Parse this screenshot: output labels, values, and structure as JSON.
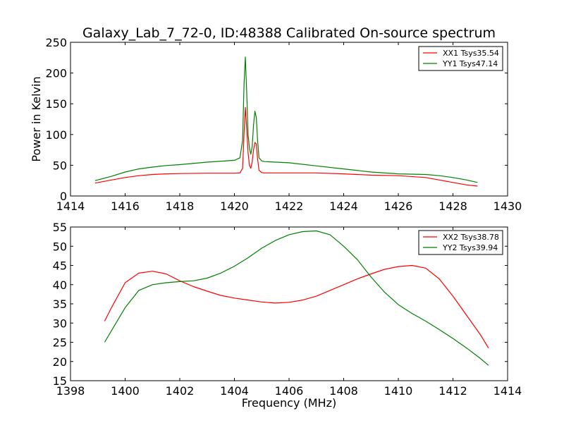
{
  "figure": {
    "title": "Galaxy_Lab_7_72-0, ID:48388 Calibrated On-source spectrum"
  },
  "chart_data": [
    {
      "type": "line",
      "title": "Galaxy_Lab_7_72-0, ID:48388 Calibrated On-source spectrum",
      "xlabel": "",
      "ylabel": "Power in Kelvin",
      "xlim": [
        1414,
        1430
      ],
      "ylim": [
        0,
        250
      ],
      "xticks": [
        1414,
        1416,
        1418,
        1420,
        1422,
        1424,
        1426,
        1428,
        1430
      ],
      "yticks": [
        0,
        50,
        100,
        150,
        200,
        250
      ],
      "grid": false,
      "legend": "top-right",
      "series": [
        {
          "name": "XX1 Tsys35.54",
          "color": "#ff0000",
          "x": [
            1414.9,
            1415.5,
            1416.0,
            1416.5,
            1417.0,
            1417.5,
            1418.0,
            1419.0,
            1420.0,
            1420.2,
            1420.3,
            1420.35,
            1420.4,
            1420.45,
            1420.5,
            1420.55,
            1420.6,
            1420.65,
            1420.7,
            1420.75,
            1420.8,
            1420.85,
            1420.9,
            1421.0,
            1421.1,
            1422.0,
            1423.0,
            1424.0,
            1425.0,
            1426.0,
            1427.0,
            1427.5,
            1428.0,
            1428.5,
            1428.9
          ],
          "values": [
            21,
            26,
            30,
            33,
            35,
            36,
            36.5,
            37,
            37,
            37.5,
            45,
            100,
            144,
            110,
            70,
            50,
            45,
            55,
            75,
            87,
            85,
            60,
            42,
            38,
            37.5,
            37.5,
            37.5,
            36,
            34,
            33,
            30,
            26,
            22,
            18,
            16
          ]
        },
        {
          "name": "YY1 Tsys47.14",
          "color": "#008000",
          "x": [
            1414.9,
            1415.5,
            1416.0,
            1416.5,
            1417.0,
            1417.5,
            1418.0,
            1419.0,
            1420.0,
            1420.2,
            1420.3,
            1420.35,
            1420.4,
            1420.45,
            1420.5,
            1420.55,
            1420.6,
            1420.65,
            1420.7,
            1420.75,
            1420.8,
            1420.85,
            1420.9,
            1421.0,
            1421.1,
            1422.0,
            1423.0,
            1424.0,
            1425.0,
            1426.0,
            1427.0,
            1427.5,
            1428.0,
            1428.5,
            1428.9
          ],
          "values": [
            25,
            32,
            39,
            44,
            47,
            49.5,
            51,
            55,
            58,
            62,
            90,
            180,
            226,
            170,
            100,
            78,
            68,
            80,
            115,
            138,
            128,
            90,
            62,
            57,
            56,
            54,
            49,
            44,
            39,
            36,
            35,
            33,
            30,
            26,
            22
          ]
        }
      ]
    },
    {
      "type": "line",
      "title": "",
      "xlabel": "Frequency (MHz)",
      "ylabel": "",
      "xlim": [
        1398,
        1414
      ],
      "ylim": [
        15,
        55
      ],
      "xticks": [
        1398,
        1400,
        1402,
        1404,
        1406,
        1408,
        1410,
        1412,
        1414
      ],
      "yticks": [
        15,
        20,
        25,
        30,
        35,
        40,
        45,
        50,
        55
      ],
      "grid": false,
      "legend": "top-right",
      "series": [
        {
          "name": "XX2 Tsys38.78",
          "color": "#ff0000",
          "x": [
            1399.25,
            1399.5,
            1400.0,
            1400.5,
            1401.0,
            1401.5,
            1402.0,
            1402.5,
            1403.0,
            1403.5,
            1404.0,
            1404.5,
            1405.0,
            1405.5,
            1406.0,
            1406.5,
            1407.0,
            1407.5,
            1408.0,
            1408.5,
            1409.0,
            1409.5,
            1410.0,
            1410.5,
            1411.0,
            1411.5,
            1412.0,
            1412.5,
            1413.0,
            1413.3
          ],
          "values": [
            30.5,
            34,
            40.5,
            43,
            43.5,
            42.8,
            41,
            39.5,
            38.3,
            37.2,
            36.5,
            36,
            35.5,
            35.2,
            35.4,
            36,
            37,
            38.5,
            40,
            41.5,
            42.8,
            44,
            44.7,
            45,
            44.3,
            41.5,
            37,
            32,
            27,
            23.5
          ]
        },
        {
          "name": "YY2 Tsys39.94",
          "color": "#008000",
          "x": [
            1399.25,
            1399.5,
            1400.0,
            1400.5,
            1401.0,
            1401.5,
            1402.0,
            1402.5,
            1403.0,
            1403.5,
            1404.0,
            1404.5,
            1405.0,
            1405.5,
            1406.0,
            1406.5,
            1407.0,
            1407.5,
            1408.0,
            1408.5,
            1409.0,
            1409.5,
            1410.0,
            1410.5,
            1411.0,
            1411.5,
            1412.0,
            1412.5,
            1413.0,
            1413.3
          ],
          "values": [
            25,
            28,
            34,
            38.5,
            40,
            40.5,
            40.8,
            41,
            41.7,
            43,
            44.8,
            47,
            49.5,
            51.5,
            53,
            53.8,
            54,
            53,
            50,
            46.5,
            42,
            38,
            34.8,
            32.5,
            30.5,
            28.3,
            26,
            23.5,
            20.8,
            19
          ]
        }
      ]
    }
  ]
}
